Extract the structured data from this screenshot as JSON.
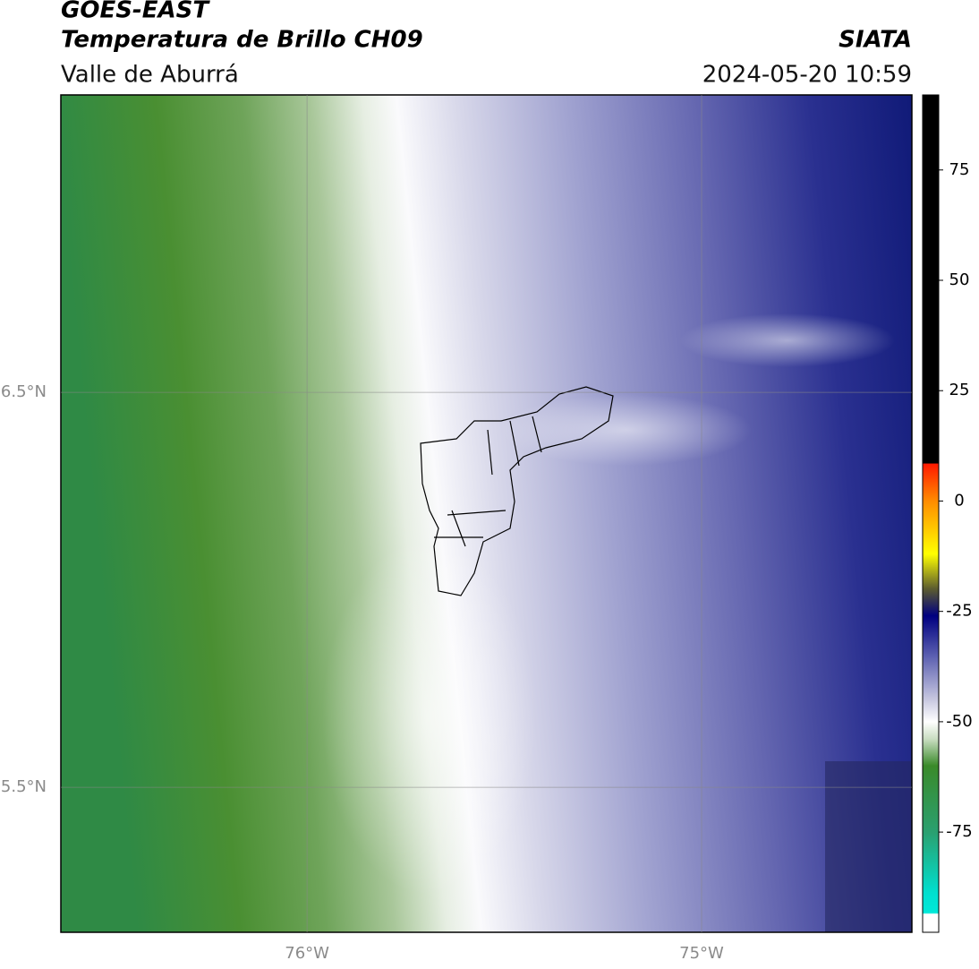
{
  "chart_data": {
    "type": "map",
    "title": "GOES-EAST",
    "subtitle": "Temperatura de Brillo CH09",
    "region": "Valle de Aburrá",
    "source": "SIATA",
    "datetime": "2024-05-20 10:59",
    "xlim": [
      -76.624,
      -74.467
    ],
    "ylim": [
      5.133,
      7.253
    ],
    "xticks": [
      {
        "value": -76,
        "label": "76°W"
      },
      {
        "value": -75,
        "label": "75°W"
      }
    ],
    "yticks": [
      {
        "value": 5.5,
        "label": "5.5°N"
      },
      {
        "value": 6.5,
        "label": "6.5°N"
      }
    ],
    "grid": true,
    "colorbar": {
      "lim": [
        -97.7,
        92
      ],
      "ticks": [
        -75,
        -50,
        -25,
        0,
        25,
        50,
        75
      ],
      "stops": [
        {
          "value": 92,
          "color": "#000000"
        },
        {
          "value": 8.6,
          "color": "#000000"
        },
        {
          "value": 8.4,
          "color": "#ff1a00"
        },
        {
          "value": 0,
          "color": "#ff8c00"
        },
        {
          "value": -12,
          "color": "#ffff00"
        },
        {
          "value": -20,
          "color": "#5a5a30"
        },
        {
          "value": -26,
          "color": "#000080"
        },
        {
          "value": -35,
          "color": "#5a5eb0"
        },
        {
          "value": -45,
          "color": "#c8c8e0"
        },
        {
          "value": -50,
          "color": "#ffffff"
        },
        {
          "value": -54,
          "color": "#c8dcc0"
        },
        {
          "value": -60,
          "color": "#3a8a2a"
        },
        {
          "value": -75,
          "color": "#2aa070"
        },
        {
          "value": -89,
          "color": "#00e0d0"
        },
        {
          "value": -93.3,
          "color": "#00e8d8"
        },
        {
          "value": -93.6,
          "color": "#ffffff"
        }
      ]
    }
  }
}
